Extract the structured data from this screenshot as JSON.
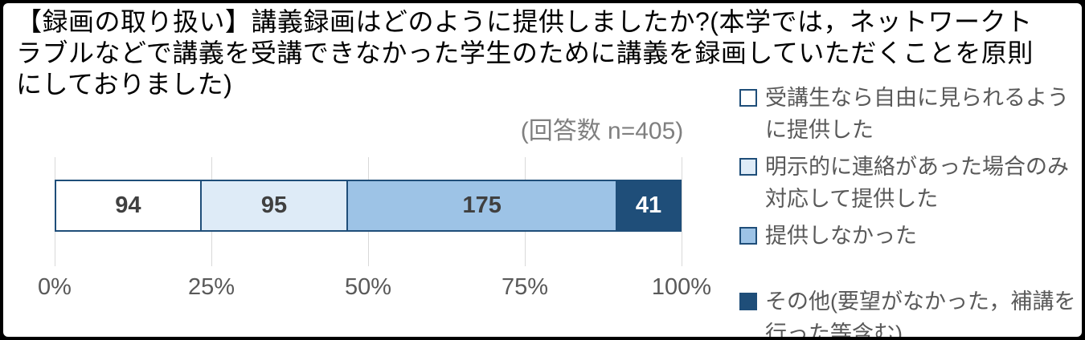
{
  "title": {
    "lines": [
      "【録画の取り扱い】講義録画はどのように提供しましたか?(本学では，ネットワークト",
      "ラブルなどで講義を受講できなかった学生のために講義を録画していただくことを原則",
      "にしておりました)"
    ],
    "full": "【録画の取り扱い】講義録画はどのように提供しましたか?(本学では，ネットワークトラブルなどで講義を受講できなかった学生のために講義を録画していただくことを原則にしておりました)"
  },
  "response_count_label": "(回答数 n=405)",
  "chart_data": {
    "type": "bar",
    "orientation": "horizontal-stacked",
    "title": "【録画の取り扱い】講義録画はどのように提供しましたか?",
    "n": 405,
    "series": [
      {
        "name": "受講生なら自由に見られるように提供した",
        "value": 94,
        "color": "#FFFFFF",
        "label_color": "#404040"
      },
      {
        "name": "明示的に連絡があった場合のみ対応して提供した",
        "value": 95,
        "color": "#DEEBF7",
        "label_color": "#404040"
      },
      {
        "name": "提供しなかった",
        "value": 175,
        "color": "#9DC3E6",
        "label_color": "#404040"
      },
      {
        "name": "その他(要望がなかった，補講を行った等含む)",
        "value": 41,
        "color": "#1F4E79",
        "label_color": "#FFFFFF"
      }
    ],
    "x_ticks": [
      "0%",
      "25%",
      "50%",
      "75%",
      "100%"
    ],
    "xlim": [
      0,
      100
    ],
    "segment_border_color": "#1F4E79",
    "gridline_color": "#D9D9D9",
    "legend_position": "right",
    "grid": true
  }
}
